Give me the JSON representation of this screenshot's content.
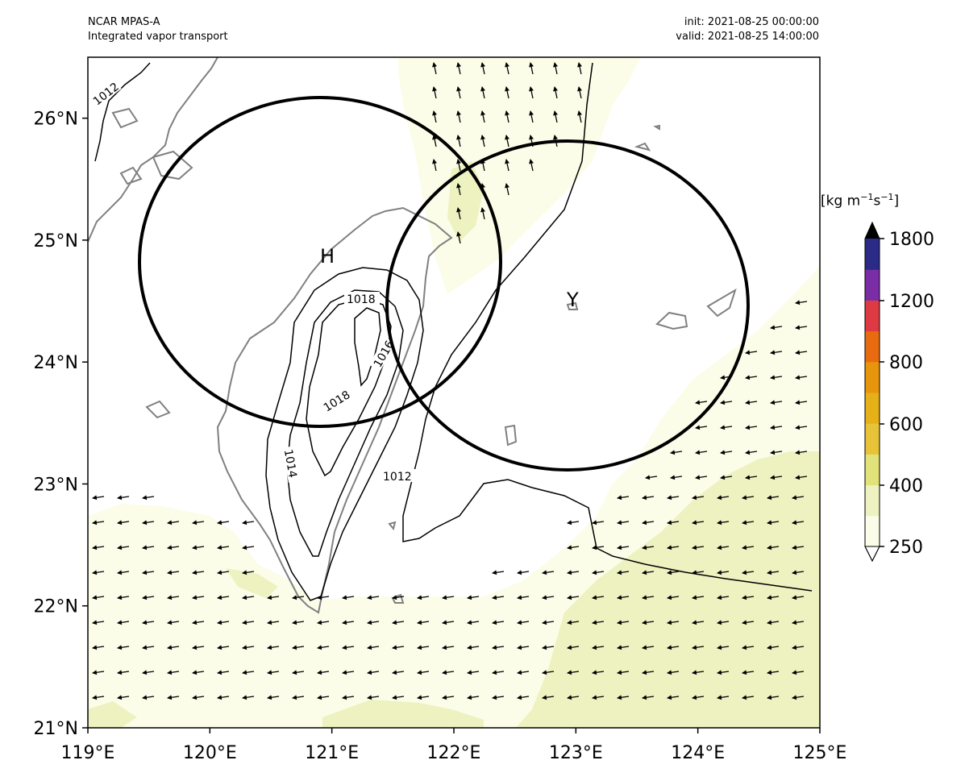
{
  "header": {
    "model": "NCAR MPAS-A",
    "field": "Integrated vapor transport",
    "init": "init: 2021-08-25 00:00:00",
    "valid": "valid: 2021-08-25 14:00:00"
  },
  "axes": {
    "lon_ticks": [
      "119°E",
      "120°E",
      "121°E",
      "122°E",
      "123°E",
      "124°E",
      "125°E"
    ],
    "lat_ticks": [
      "21°N",
      "22°N",
      "23°N",
      "24°N",
      "25°N",
      "26°N"
    ],
    "lon_range": [
      119,
      125
    ],
    "lat_range": [
      21,
      26.5
    ]
  },
  "colorbar": {
    "unit_base": "[kg m",
    "unit_exp1": "−1",
    "unit_mid": "s",
    "unit_exp2": "−1",
    "unit_end": "]",
    "tick_labels": [
      "250",
      "400",
      "600",
      "800",
      "1200",
      "1800"
    ],
    "colors": [
      "#fbfde8",
      "#eef2c0",
      "#e2e27a",
      "#e8c33a",
      "#e6b019",
      "#e8950e",
      "#e96b10",
      "#dd3a44",
      "#7b2da6",
      "#2b2a86"
    ],
    "extend_max_color": "#000000"
  },
  "annotations": {
    "high_label": "H",
    "typhoon_label": "Y"
  },
  "isobars": {
    "labels": [
      "1012",
      "1018",
      "1016",
      "1018",
      "1014",
      "1012"
    ]
  },
  "colors": {
    "coastline": "#808080",
    "contour": "#000000",
    "ivt_light": "#fbfde8",
    "ivt_mid": "#eef2c0"
  }
}
